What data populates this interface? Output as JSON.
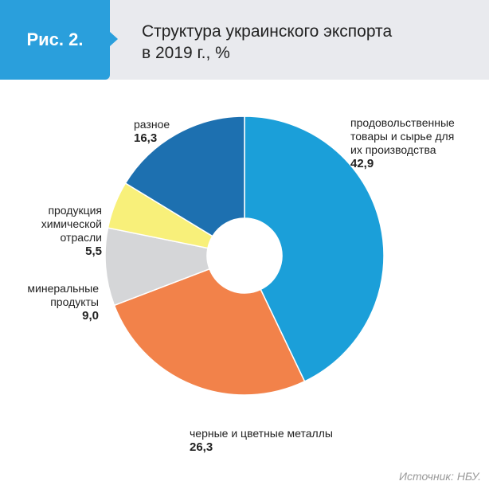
{
  "figure_label": "Рис. 2.",
  "title_line1": "Структура украинского экспорта",
  "title_line2": "в 2019 г., %",
  "source": "Источник: НБУ.",
  "chart_data": {
    "type": "pie",
    "title": "Структура украинского экспорта в 2019 г., %",
    "donut": true,
    "slices": [
      {
        "label": "продовольственные товары и сырье для их производства",
        "value": 42.9,
        "value_text": "42,9",
        "color": "#1b9fd9"
      },
      {
        "label": "черные и цветные металлы",
        "value": 26.3,
        "value_text": "26,3",
        "color": "#f2824a"
      },
      {
        "label": "минеральные продукты",
        "value": 9.0,
        "value_text": "9,0",
        "color": "#d5d6d8"
      },
      {
        "label": "продукция химической отрасли",
        "value": 5.5,
        "value_text": "5,5",
        "color": "#f8f07a"
      },
      {
        "label": "разное",
        "value": 16.3,
        "value_text": "16,3",
        "color": "#1d70b0"
      }
    ]
  },
  "labels": {
    "food": {
      "lines": [
        "продовольственные",
        "товары и сырье для",
        "их производства"
      ]
    },
    "metals": {
      "lines": [
        "черные и цветные металлы"
      ]
    },
    "minerals": {
      "lines": [
        "минеральные",
        "продукты"
      ]
    },
    "chemical": {
      "lines": [
        "продукция",
        "химической",
        "отрасли"
      ]
    },
    "misc": {
      "lines": [
        "разное"
      ]
    }
  }
}
